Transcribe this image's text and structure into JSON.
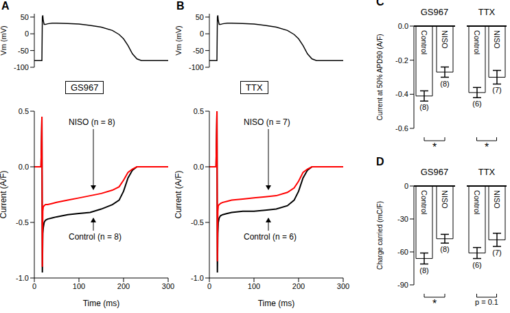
{
  "chart_data": [
    {
      "panel": "A",
      "type": "line",
      "y_label": "Vm (mV)",
      "ylim": [
        -100,
        60
      ],
      "yticks": [
        -100,
        -50,
        0,
        50
      ],
      "tick_labels": "y",
      "x": [
        0,
        10,
        15,
        17,
        18,
        19,
        20,
        22,
        25,
        30,
        40,
        50,
        75,
        100,
        125,
        150,
        175,
        190,
        200,
        210,
        220,
        230,
        240,
        260,
        300
      ],
      "series": [
        {
          "color": "#000000",
          "values": [
            -80,
            -80,
            -80,
            -80,
            50,
            55,
            40,
            28,
            28,
            30,
            32,
            32,
            31,
            29,
            25,
            20,
            10,
            -2,
            -15,
            -35,
            -60,
            -75,
            -80,
            -80,
            -80
          ]
        }
      ]
    },
    {
      "type": "line",
      "label": "GS967",
      "x_label": "Time (ms)",
      "y_label": "Current (A/F)",
      "xlim": [
        0,
        300
      ],
      "xticks": [
        0,
        100,
        200,
        300
      ],
      "ylim": [
        -1,
        0.5
      ],
      "yticks": [
        {
          "value": -1,
          "label": "-1.0"
        },
        -0.5,
        {
          "value": 0,
          "label": "0.0"
        },
        0.5
      ],
      "x": [
        0,
        10,
        15,
        17,
        18,
        19,
        20,
        22,
        25,
        30,
        40,
        50,
        75,
        100,
        125,
        150,
        175,
        190,
        200,
        210,
        220,
        230,
        240,
        260,
        300
      ],
      "series": [
        {
          "name": "NISO (n = 8)",
          "color": "#ff0000",
          "values": [
            0,
            0,
            0,
            0.45,
            -0.9,
            -0.4,
            -0.36,
            -0.35,
            -0.34,
            -0.34,
            -0.33,
            -0.32,
            -0.3,
            -0.28,
            -0.26,
            -0.24,
            -0.21,
            -0.18,
            -0.12,
            -0.05,
            -0.02,
            0,
            0,
            0,
            0
          ]
        },
        {
          "name": "Control (n = 8)",
          "color": "#000000",
          "values": [
            0,
            0,
            0,
            0.45,
            -0.95,
            -0.6,
            -0.55,
            -0.5,
            -0.48,
            -0.47,
            -0.46,
            -0.45,
            -0.43,
            -0.42,
            -0.41,
            -0.38,
            -0.34,
            -0.3,
            -0.22,
            -0.1,
            -0.03,
            0,
            0,
            0,
            0
          ]
        }
      ]
    },
    {
      "panel": "B",
      "type": "line",
      "y_label": "Vm (mV)",
      "ylim": [
        -100,
        60
      ],
      "yticks": [
        -100,
        -50,
        0,
        50
      ],
      "tick_labels": "y",
      "x": [
        0,
        10,
        15,
        17,
        18,
        19,
        20,
        22,
        25,
        30,
        40,
        50,
        75,
        100,
        125,
        150,
        175,
        190,
        200,
        210,
        220,
        230,
        240,
        260,
        300
      ],
      "series": [
        {
          "color": "#000000",
          "values": [
            -80,
            -80,
            -80,
            -80,
            50,
            55,
            40,
            28,
            28,
            30,
            32,
            32,
            31,
            29,
            25,
            20,
            10,
            -2,
            -15,
            -35,
            -60,
            -75,
            -80,
            -80,
            -80
          ]
        }
      ]
    },
    {
      "type": "line",
      "label": "TTX",
      "x_label": "Time (ms)",
      "y_label": "Current (A/F)",
      "xlim": [
        0,
        300
      ],
      "xticks": [
        0,
        100,
        200,
        300
      ],
      "ylim": [
        -1,
        0.5
      ],
      "yticks": [
        {
          "value": -1,
          "label": "-1.0"
        },
        -0.5,
        {
          "value": 0,
          "label": "0.0"
        },
        0.5
      ],
      "x": [
        0,
        10,
        15,
        17,
        18,
        19,
        20,
        22,
        25,
        30,
        40,
        50,
        75,
        100,
        125,
        150,
        175,
        190,
        200,
        210,
        220,
        230,
        240,
        260,
        300
      ],
      "series": [
        {
          "name": "NISO (n = 7)",
          "color": "#ff0000",
          "values": [
            0,
            0,
            0,
            0.5,
            -0.85,
            -0.4,
            -0.35,
            -0.34,
            -0.33,
            -0.32,
            -0.31,
            -0.3,
            -0.29,
            -0.28,
            -0.27,
            -0.26,
            -0.23,
            -0.19,
            -0.13,
            -0.05,
            -0.02,
            0,
            0,
            0,
            0
          ]
        },
        {
          "name": "Control (n = 6)",
          "color": "#000000",
          "values": [
            0,
            0,
            0,
            0.5,
            -0.95,
            -0.6,
            -0.5,
            -0.46,
            -0.44,
            -0.43,
            -0.42,
            -0.41,
            -0.4,
            -0.4,
            -0.39,
            -0.38,
            -0.35,
            -0.3,
            -0.22,
            -0.1,
            -0.03,
            0,
            0,
            0,
            0
          ]
        }
      ]
    },
    {
      "panel": "C",
      "type": "bar",
      "y_label": "Current at 50% APD90 (A/F)",
      "color": "#ffffff",
      "ylim": [
        -0.6,
        0
      ],
      "yticks": [
        {
          "value": 0,
          "label": "0.0"
        },
        -0.2,
        -0.4,
        -0.6
      ],
      "groups": [
        {
          "name": "GS967",
          "categories": [
            "Control",
            "NISO"
          ],
          "values": [
            -0.41,
            -0.27
          ],
          "errors": [
            0.03,
            0.03
          ],
          "n_labels": [
            "(8)",
            "(8)"
          ],
          "significance": "*"
        },
        {
          "name": "TTX",
          "categories": [
            "Control",
            "NISO"
          ],
          "values": [
            -0.39,
            -0.3
          ],
          "errors": [
            0.03,
            0.04
          ],
          "n_labels": [
            "(6)",
            "(7)"
          ],
          "significance": "*"
        }
      ]
    },
    {
      "panel": "D",
      "type": "bar",
      "y_label": "Charge carried (mC/F)",
      "color": "#ffffff",
      "ylim": [
        -90,
        0
      ],
      "yticks": [
        0,
        -30,
        -60,
        -90
      ],
      "groups": [
        {
          "name": "GS967",
          "categories": [
            "Control",
            "NISO"
          ],
          "values": [
            -66,
            -48
          ],
          "errors": [
            5,
            4
          ],
          "n_labels": [
            "(8)",
            "(8)"
          ],
          "significance": "*"
        },
        {
          "name": "TTX",
          "categories": [
            "Control",
            "NISO"
          ],
          "values": [
            -61,
            -49
          ],
          "errors": [
            5,
            6
          ],
          "n_labels": [
            "(6)",
            "(7)"
          ],
          "significance": "p = 0.1"
        }
      ]
    }
  ]
}
